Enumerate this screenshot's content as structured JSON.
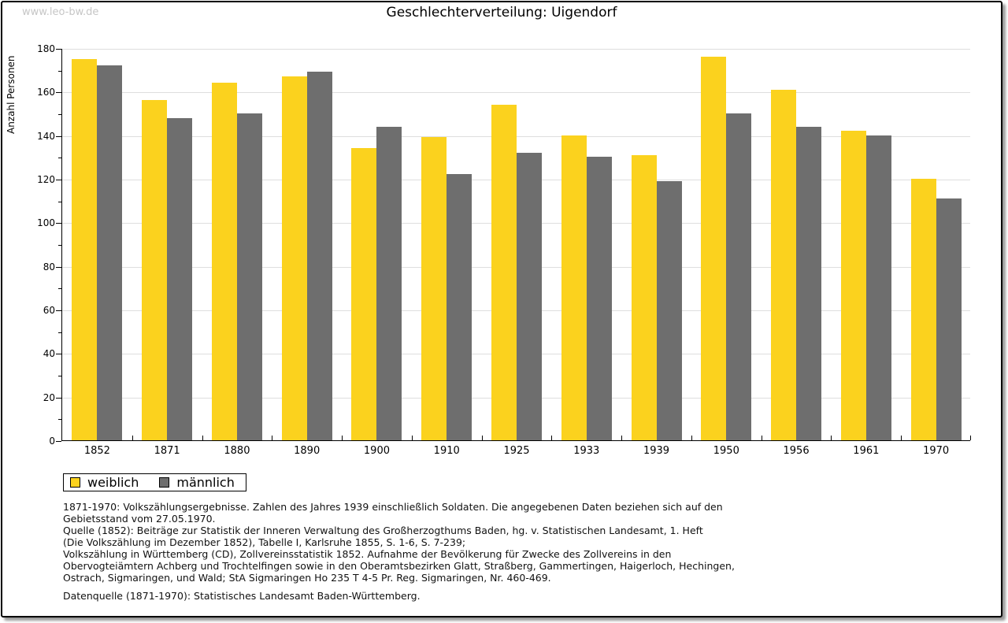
{
  "watermark": "www.leo-bw.de",
  "chart_data": {
    "type": "bar",
    "title": "Geschlechterverteilung: Uigendorf",
    "xlabel": "",
    "ylabel": "Anzahl Personen",
    "ylim": [
      0,
      180
    ],
    "ytick_step": 20,
    "ytick_minor_step": 10,
    "grid": "horizontal-major",
    "legend_position": "bottom-left",
    "categories": [
      "1852",
      "1871",
      "1880",
      "1890",
      "1900",
      "1910",
      "1925",
      "1933",
      "1939",
      "1950",
      "1956",
      "1961",
      "1970"
    ],
    "series": [
      {
        "name": "weiblich",
        "color": "#fbd21e",
        "values": [
          175,
          156,
          164,
          167,
          134,
          139,
          154,
          140,
          131,
          176,
          161,
          142,
          120
        ]
      },
      {
        "name": "männlich",
        "color": "#6e6e6e",
        "values": [
          172,
          148,
          150,
          169,
          144,
          122,
          132,
          130,
          119,
          150,
          144,
          140,
          111
        ]
      }
    ]
  },
  "colors": {
    "gridline": "#dedede",
    "axis": "#000000",
    "weiblich": "#fbd21e",
    "maennlich": "#6e6e6e"
  },
  "source_notes": {
    "lines": [
      "1871-1970: Volkszählungsergebnisse. Zahlen des Jahres 1939 einschließlich Soldaten. Die angegebenen Daten beziehen sich auf den",
      "Gebietsstand vom 27.05.1970.",
      "Quelle (1852): Beiträge zur Statistik der Inneren Verwaltung des Großherzogthums Baden, hg. v. Statistischen Landesamt, 1. Heft",
      "(Die Volkszählung im Dezember 1852), Tabelle I, Karlsruhe 1855, S. 1-6, S. 7-239;",
      "Volkszählung in Württemberg (CD), Zollvereinsstatistik 1852. Aufnahme der Bevölkerung für Zwecke des Zollvereins in den",
      "Obervogteiämtern Achberg und Trochtelfingen sowie in den Oberamtsbezirken Glatt, Straßberg, Gammertingen, Haigerloch, Hechingen,",
      "Ostrach, Sigmaringen, und Wald; StA Sigmaringen Ho 235 T 4-5 Pr. Reg. Sigmaringen, Nr. 460-469."
    ],
    "datasource": "Datenquelle (1871-1970): Statistisches Landesamt Baden-Württemberg."
  }
}
